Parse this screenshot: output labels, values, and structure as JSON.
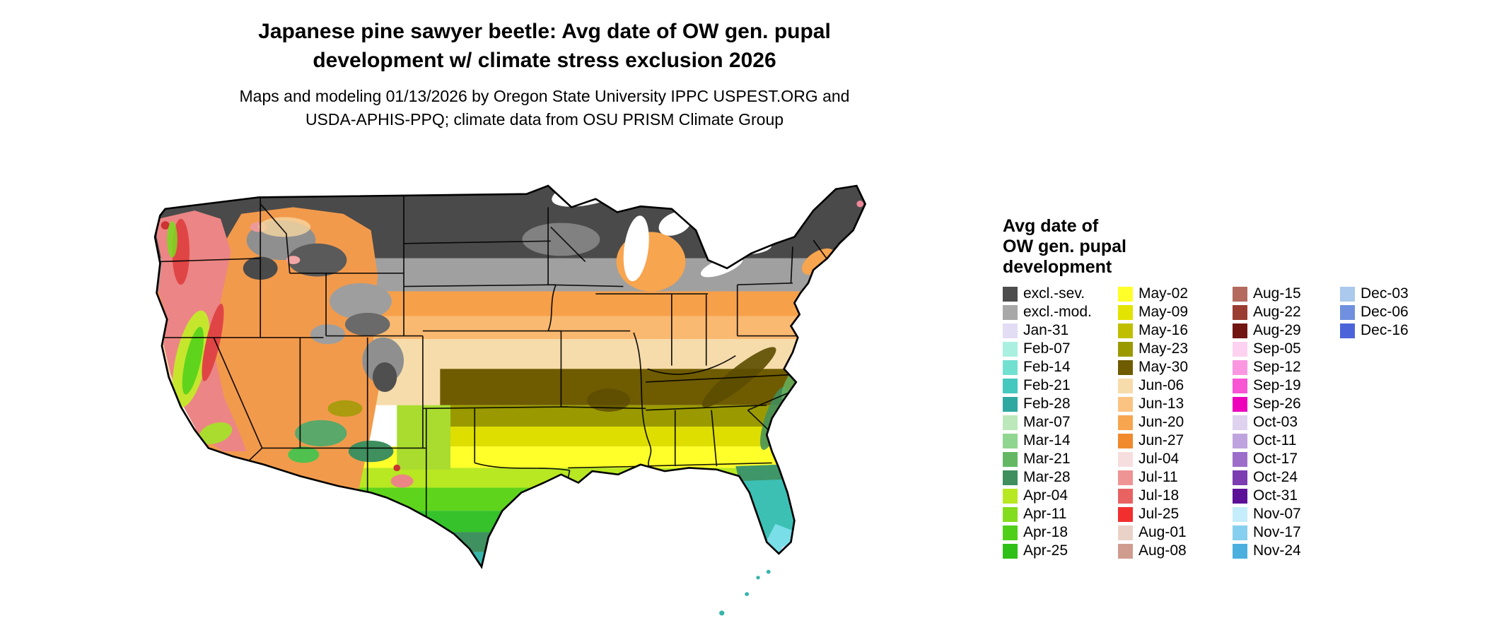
{
  "header": {
    "title_line1": "Japanese pine sawyer beetle: Avg date of OW gen. pupal",
    "title_line2": "development w/ climate stress exclusion 2026",
    "subtitle_line1": "Maps and modeling 01/13/2026 by Oregon State University IPPC USPEST.ORG and",
    "subtitle_line2": "USDA-APHIS-PPQ; climate data from OSU PRISM Climate Group"
  },
  "legend": {
    "title_lines": [
      "Avg date of",
      "OW gen. pupal",
      "development"
    ],
    "columns": [
      {
        "entries": [
          {
            "label": "excl.-sev.",
            "color": "#4d4d4d"
          },
          {
            "label": "excl.-mod.",
            "color": "#a8a8a8"
          },
          {
            "label": "Jan-31",
            "color": "#e3dcf5"
          },
          {
            "label": "Feb-07",
            "color": "#a9f0e1"
          },
          {
            "label": "Feb-14",
            "color": "#72e0d1"
          },
          {
            "label": "Feb-21",
            "color": "#45c8bd"
          },
          {
            "label": "Feb-28",
            "color": "#2fa8a2"
          },
          {
            "label": "Mar-07",
            "color": "#bce8bc"
          },
          {
            "label": "Mar-14",
            "color": "#90d690"
          },
          {
            "label": "Mar-21",
            "color": "#64b864"
          },
          {
            "label": "Mar-28",
            "color": "#3f8f5f"
          },
          {
            "label": "Apr-04",
            "color": "#b8e822"
          },
          {
            "label": "Apr-11",
            "color": "#84dc1e"
          },
          {
            "label": "Apr-18",
            "color": "#50cf1a"
          },
          {
            "label": "Apr-25",
            "color": "#2fc017"
          }
        ]
      },
      {
        "entries": [
          {
            "label": "May-02",
            "color": "#ffff2a"
          },
          {
            "label": "May-09",
            "color": "#e3e300"
          },
          {
            "label": "May-16",
            "color": "#bfbf00"
          },
          {
            "label": "May-23",
            "color": "#9a9a00"
          },
          {
            "label": "May-30",
            "color": "#6f5c00"
          },
          {
            "label": "Jun-06",
            "color": "#f6dcab"
          },
          {
            "label": "Jun-13",
            "color": "#fac382"
          },
          {
            "label": "Jun-20",
            "color": "#f7a54f"
          },
          {
            "label": "Jun-27",
            "color": "#f08a2d"
          },
          {
            "label": "Jul-04",
            "color": "#f7dede"
          },
          {
            "label": "Jul-11",
            "color": "#ef9494"
          },
          {
            "label": "Jul-18",
            "color": "#e86262"
          },
          {
            "label": "Jul-25",
            "color": "#f22f2f"
          },
          {
            "label": "Aug-01",
            "color": "#ead2c8"
          },
          {
            "label": "Aug-08",
            "color": "#d09c90"
          }
        ]
      },
      {
        "entries": [
          {
            "label": "Aug-15",
            "color": "#b46a5e"
          },
          {
            "label": "Aug-22",
            "color": "#9a3c32"
          },
          {
            "label": "Aug-29",
            "color": "#701512"
          },
          {
            "label": "Sep-05",
            "color": "#fdd2f0"
          },
          {
            "label": "Sep-12",
            "color": "#fb97e1"
          },
          {
            "label": "Sep-19",
            "color": "#f854d3"
          },
          {
            "label": "Sep-26",
            "color": "#ee00bb"
          },
          {
            "label": "Oct-03",
            "color": "#ded2ef"
          },
          {
            "label": "Oct-11",
            "color": "#bfa3df"
          },
          {
            "label": "Oct-17",
            "color": "#9c6dc9"
          },
          {
            "label": "Oct-24",
            "color": "#7b3db1"
          },
          {
            "label": "Oct-31",
            "color": "#5c1097"
          },
          {
            "label": "Nov-07",
            "color": "#c5edfb"
          },
          {
            "label": "Nov-17",
            "color": "#86cfee"
          },
          {
            "label": "Nov-24",
            "color": "#4cb0df"
          }
        ]
      },
      {
        "entries": [
          {
            "label": "Dec-03",
            "color": "#aac9ed"
          },
          {
            "label": "Dec-06",
            "color": "#7090df"
          },
          {
            "label": "Dec-16",
            "color": "#4c64da"
          }
        ]
      }
    ]
  }
}
